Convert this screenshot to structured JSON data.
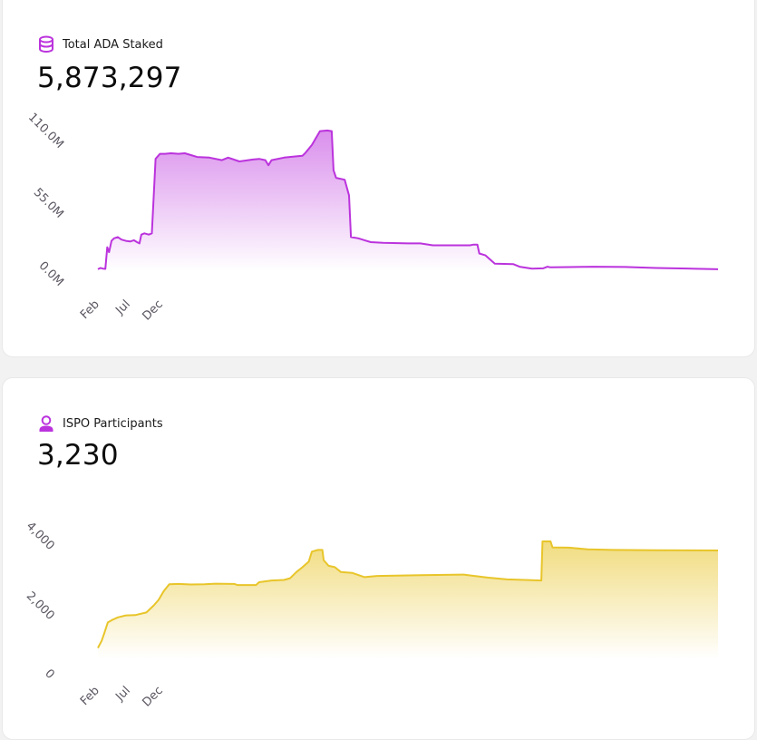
{
  "cards": [
    {
      "title": "Total ADA Staked",
      "value": "5,873,297",
      "icon": "coins-stack-icon",
      "accent": "#bb33dd",
      "chart_data": {
        "type": "area",
        "x_ticks": [
          "Feb",
          "Jul",
          "Dec"
        ],
        "y_ticks": [
          "0.0M",
          "55.0M",
          "110.0M"
        ],
        "y_tick_values": [
          0,
          55,
          110
        ],
        "ylim": [
          0,
          110
        ],
        "y_unit": "M",
        "grid": false,
        "series": [
          {
            "color": "#bb33dd",
            "points": [
              [
                0.0,
                1.5
              ],
              [
                0.004,
                2.5
              ],
              [
                0.008,
                2.0
              ],
              [
                0.012,
                1.8
              ],
              [
                0.015,
                19
              ],
              [
                0.018,
                15
              ],
              [
                0.022,
                24
              ],
              [
                0.026,
                26
              ],
              [
                0.032,
                27
              ],
              [
                0.038,
                25
              ],
              [
                0.045,
                24
              ],
              [
                0.052,
                23.5
              ],
              [
                0.058,
                24.5
              ],
              [
                0.063,
                23
              ],
              [
                0.067,
                22
              ],
              [
                0.07,
                29
              ],
              [
                0.075,
                30
              ],
              [
                0.082,
                29
              ],
              [
                0.087,
                30
              ],
              [
                0.09,
                60
              ],
              [
                0.093,
                89
              ],
              [
                0.1,
                93
              ],
              [
                0.108,
                93
              ],
              [
                0.118,
                93.5
              ],
              [
                0.13,
                93
              ],
              [
                0.14,
                93.5
              ],
              [
                0.15,
                92
              ],
              [
                0.16,
                90.5
              ],
              [
                0.18,
                90
              ],
              [
                0.2,
                88
              ],
              [
                0.21,
                90
              ],
              [
                0.228,
                87
              ],
              [
                0.25,
                88.5
              ],
              [
                0.26,
                89
              ],
              [
                0.27,
                88
              ],
              [
                0.275,
                84
              ],
              [
                0.28,
                88
              ],
              [
                0.3,
                90
              ],
              [
                0.32,
                91
              ],
              [
                0.33,
                91.5
              ],
              [
                0.335,
                94
              ],
              [
                0.345,
                100
              ],
              [
                0.358,
                111
              ],
              [
                0.37,
                111.5
              ],
              [
                0.377,
                111
              ],
              [
                0.38,
                80
              ],
              [
                0.384,
                74
              ],
              [
                0.398,
                72.5
              ],
              [
                0.405,
                60
              ],
              [
                0.408,
                27
              ],
              [
                0.42,
                26
              ],
              [
                0.43,
                24.5
              ],
              [
                0.44,
                23
              ],
              [
                0.46,
                22.5
              ],
              [
                0.5,
                22
              ],
              [
                0.52,
                22
              ],
              [
                0.54,
                20.5
              ],
              [
                0.58,
                20.5
              ],
              [
                0.6,
                20.5
              ],
              [
                0.605,
                21
              ],
              [
                0.612,
                21
              ],
              [
                0.615,
                14
              ],
              [
                0.625,
                12.5
              ],
              [
                0.64,
                6
              ],
              [
                0.67,
                5.5
              ],
              [
                0.68,
                3.5
              ],
              [
                0.7,
                2.0
              ],
              [
                0.718,
                2.2
              ],
              [
                0.725,
                3.5
              ],
              [
                0.73,
                3.0
              ],
              [
                0.76,
                3.2
              ],
              [
                0.8,
                3.5
              ],
              [
                0.85,
                3.3
              ],
              [
                0.9,
                2.5
              ],
              [
                0.95,
                2.1
              ],
              [
                1.0,
                1.5
              ]
            ]
          }
        ]
      }
    },
    {
      "title": "ISPO Participants",
      "value": "3,230",
      "icon": "user-icon",
      "accent": "#e8c52a",
      "chart_data": {
        "type": "area",
        "x_ticks": [
          "Feb",
          "Jul",
          "Dec"
        ],
        "y_ticks": [
          "0",
          "2,000",
          "4,000"
        ],
        "y_tick_values": [
          0,
          2000,
          4000
        ],
        "ylim": [
          0,
          4000
        ],
        "grid": false,
        "series": [
          {
            "color": "#e8c52a",
            "points": [
              [
                0.0,
                400
              ],
              [
                0.006,
                650
              ],
              [
                0.01,
                900
              ],
              [
                0.016,
                1300
              ],
              [
                0.024,
                1400
              ],
              [
                0.032,
                1480
              ],
              [
                0.045,
                1550
              ],
              [
                0.06,
                1560
              ],
              [
                0.078,
                1650
              ],
              [
                0.09,
                1900
              ],
              [
                0.098,
                2100
              ],
              [
                0.106,
                2400
              ],
              [
                0.115,
                2650
              ],
              [
                0.13,
                2660
              ],
              [
                0.15,
                2640
              ],
              [
                0.172,
                2650
              ],
              [
                0.19,
                2670
              ],
              [
                0.22,
                2660
              ],
              [
                0.225,
                2620
              ],
              [
                0.255,
                2620
              ],
              [
                0.26,
                2720
              ],
              [
                0.28,
                2780
              ],
              [
                0.3,
                2800
              ],
              [
                0.31,
                2860
              ],
              [
                0.32,
                3080
              ],
              [
                0.33,
                3250
              ],
              [
                0.34,
                3450
              ],
              [
                0.345,
                3800
              ],
              [
                0.355,
                3860
              ],
              [
                0.362,
                3860
              ],
              [
                0.364,
                3500
              ],
              [
                0.372,
                3300
              ],
              [
                0.382,
                3250
              ],
              [
                0.392,
                3080
              ],
              [
                0.41,
                3050
              ],
              [
                0.43,
                2900
              ],
              [
                0.45,
                2940
              ],
              [
                0.48,
                2950
              ],
              [
                0.5,
                2960
              ],
              [
                0.52,
                2970
              ],
              [
                0.56,
                2980
              ],
              [
                0.59,
                2990
              ],
              [
                0.6,
                2960
              ],
              [
                0.63,
                2880
              ],
              [
                0.66,
                2820
              ],
              [
                0.7,
                2790
              ],
              [
                0.715,
                2780
              ],
              [
                0.717,
                4160
              ],
              [
                0.73,
                4160
              ],
              [
                0.733,
                3950
              ],
              [
                0.76,
                3940
              ],
              [
                0.79,
                3880
              ],
              [
                0.83,
                3860
              ],
              [
                0.9,
                3850
              ],
              [
                1.0,
                3840
              ]
            ]
          }
        ]
      }
    }
  ]
}
